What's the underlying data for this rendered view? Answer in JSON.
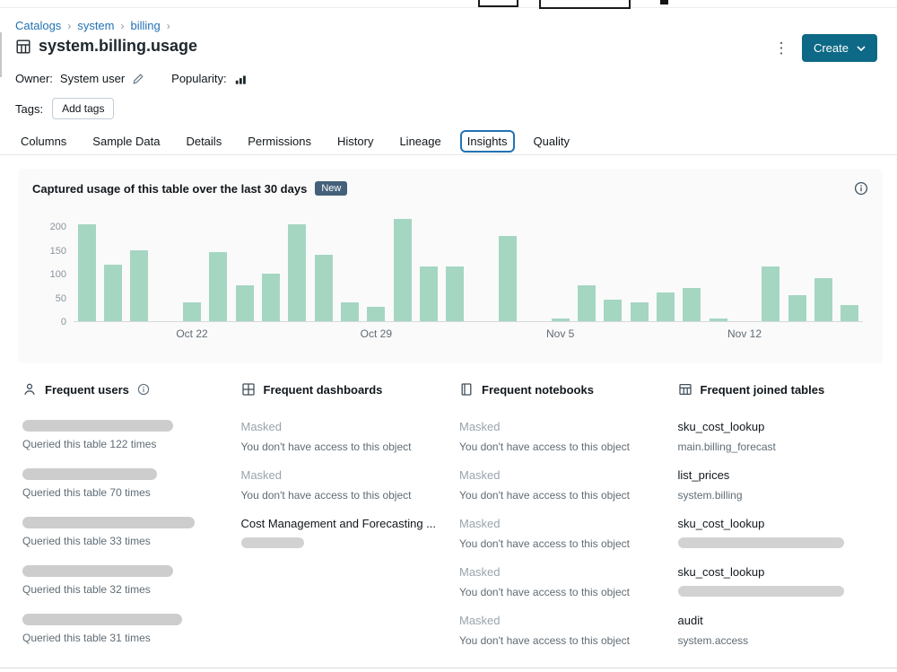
{
  "colors": {
    "accent_blue": "#2272B4",
    "create_button_bg": "#0D6986",
    "bar_fill": "#A5D6C2",
    "badge_new_bg": "#44607A",
    "panel_bg": "#FAFAFB"
  },
  "icons": {
    "kebab": "⋮"
  },
  "header": {
    "breadcrumb": [
      "Catalogs",
      "system",
      "billing"
    ],
    "breadcrumb_separator": "›",
    "title": "system.billing.usage",
    "create_label": "Create",
    "owner_label": "Owner:",
    "owner_value": "System user",
    "popularity_label": "Popularity:",
    "tags_label": "Tags:",
    "add_tags_label": "Add tags"
  },
  "tabs": {
    "items": [
      "Columns",
      "Sample Data",
      "Details",
      "Permissions",
      "History",
      "Lineage",
      "Insights",
      "Quality"
    ],
    "active": "Insights"
  },
  "insights_panel": {
    "title": "Captured usage of this table over the last 30 days",
    "badge": "New"
  },
  "chart_data": {
    "type": "bar",
    "title": "Captured usage of this table over the last 30 days",
    "xlabel": "",
    "ylabel": "",
    "ylim": [
      0,
      225
    ],
    "y_ticks": [
      0,
      50,
      100,
      150,
      200
    ],
    "values": [
      205,
      120,
      150,
      0,
      40,
      145,
      75,
      100,
      205,
      140,
      40,
      30,
      215,
      115,
      115,
      0,
      180,
      0,
      5,
      75,
      45,
      40,
      60,
      70,
      5,
      0,
      115,
      55,
      90,
      35
    ],
    "x_tick_labels": [
      {
        "index": 4,
        "label": "Oct 22"
      },
      {
        "index": 11,
        "label": "Oct 29"
      },
      {
        "index": 18,
        "label": "Nov 5"
      },
      {
        "index": 25,
        "label": "Nov 12"
      }
    ],
    "bar_color": "#A5D6C2",
    "grid": false,
    "legend": false
  },
  "sections": [
    {
      "id": "frequent-users",
      "title": "Frequent users",
      "icon": "person-icon",
      "has_info": true,
      "items": [
        {
          "masked_title": true,
          "masked_width": 168,
          "subtitle": "Queried this table 122 times"
        },
        {
          "masked_title": true,
          "masked_width": 150,
          "subtitle": "Queried this table 70 times"
        },
        {
          "masked_title": true,
          "masked_width": 192,
          "subtitle": "Queried this table 33 times"
        },
        {
          "masked_title": true,
          "masked_width": 168,
          "subtitle": "Queried this table 32 times"
        },
        {
          "masked_title": true,
          "masked_width": 178,
          "subtitle": "Queried this table 31 times"
        }
      ]
    },
    {
      "id": "frequent-dashboards",
      "title": "Frequent dashboards",
      "icon": "dashboard-icon",
      "has_info": false,
      "items": [
        {
          "title": "Masked",
          "subtitle": "You don't have access to this object"
        },
        {
          "title": "Masked",
          "subtitle": "You don't have access to this object"
        },
        {
          "title": "Cost Management and Forecasting ...",
          "is_link": true,
          "masked_subtitle": true,
          "masked_subtitle_width": 70
        }
      ]
    },
    {
      "id": "frequent-notebooks",
      "title": "Frequent notebooks",
      "icon": "notebook-icon",
      "has_info": false,
      "items": [
        {
          "title": "Masked",
          "subtitle": "You don't have access to this object"
        },
        {
          "title": "Masked",
          "subtitle": "You don't have access to this object"
        },
        {
          "title": "Masked",
          "subtitle": "You don't have access to this object"
        },
        {
          "title": "Masked",
          "subtitle": "You don't have access to this object"
        },
        {
          "title": "Masked",
          "subtitle": "You don't have access to this object"
        }
      ]
    },
    {
      "id": "frequent-joined-tables",
      "title": "Frequent joined tables",
      "icon": "table-icon",
      "has_info": false,
      "items": [
        {
          "title": "sku_cost_lookup",
          "is_link": true,
          "subtitle": "main.billing_forecast"
        },
        {
          "title": "list_prices",
          "is_link": true,
          "subtitle": "system.billing"
        },
        {
          "title": "sku_cost_lookup",
          "is_link": true,
          "masked_subtitle": true,
          "masked_subtitle_width": 185
        },
        {
          "title": "sku_cost_lookup",
          "is_link": true,
          "masked_subtitle": true,
          "masked_subtitle_width": 185
        },
        {
          "title": "audit",
          "is_link": true,
          "subtitle": "system.access"
        }
      ]
    }
  ]
}
